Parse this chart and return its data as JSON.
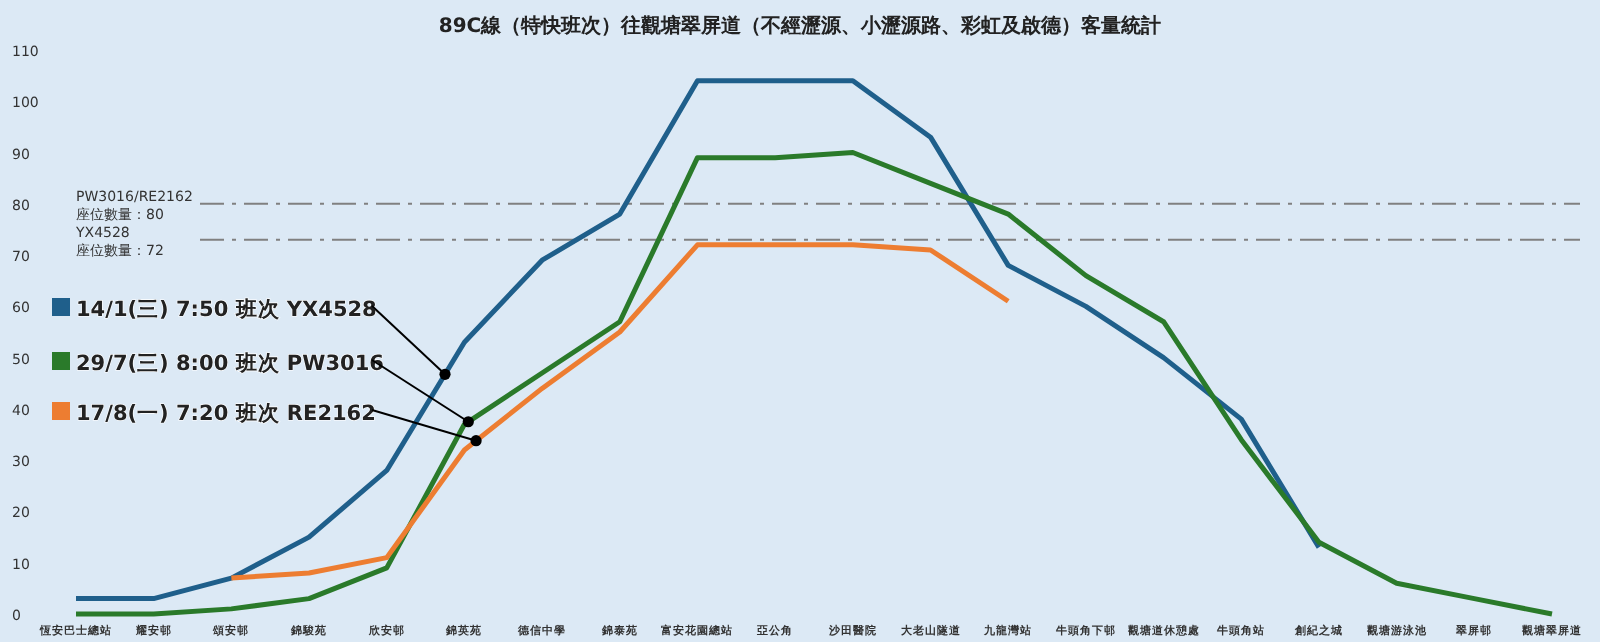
{
  "chart_data": {
    "type": "line",
    "title": "89C線（特快班次）往觀塘翠屏道（不經瀝源、小瀝源路、彩虹及啟德）客量統計",
    "categories": [
      "恆安巴士總站",
      "耀安邨",
      "頌安邨",
      "錦駿苑",
      "欣安邨",
      "錦英苑",
      "德信中學",
      "錦泰苑",
      "富安花園總站",
      "亞公角",
      "沙田醫院",
      "大老山隧道",
      "九龍灣站",
      "牛頭角下邨",
      "觀塘道休憩處",
      "牛頭角站",
      "創紀之城",
      "觀塘游泳池",
      "翠屏邨",
      "觀塘翠屏道"
    ],
    "series": [
      {
        "name": "14/1(三) 7:50 班次 YX4528",
        "color": "#1f5f8b",
        "values": [
          3,
          3,
          7,
          15,
          28,
          53,
          69,
          78,
          104,
          104,
          104,
          93,
          68,
          60,
          50,
          38,
          13,
          null,
          null,
          null
        ]
      },
      {
        "name": "29/7(三) 8:00 班次 PW3016",
        "color": "#2a7a2a",
        "values": [
          0,
          0,
          1,
          3,
          9,
          37,
          47,
          57,
          89,
          89,
          90,
          84,
          78,
          66,
          57,
          34,
          14,
          6,
          3,
          0
        ]
      },
      {
        "name": "17/8(一) 7:20 班次 RE2162",
        "color": "#ed7d31",
        "values": [
          null,
          null,
          7,
          8,
          11,
          32,
          44,
          55,
          72,
          72,
          72,
          71,
          61,
          null,
          null,
          null,
          null,
          null,
          null,
          null
        ]
      }
    ],
    "ylim": [
      0,
      110
    ],
    "yticks": [
      0,
      10,
      20,
      30,
      40,
      50,
      60,
      70,
      80,
      90,
      100,
      110
    ],
    "ref_lines": [
      {
        "axis": "y",
        "value": 80,
        "label": "PW3016/RE2162\n座位數量：80",
        "color": "#808080",
        "line_style": "dashdot"
      },
      {
        "axis": "y",
        "value": 73,
        "label": "YX4528\n座位數量：72",
        "color": "#808080",
        "line_style": "dashdot"
      }
    ],
    "grid": false,
    "legend": "left",
    "line_style": "solid",
    "marker": "none"
  }
}
